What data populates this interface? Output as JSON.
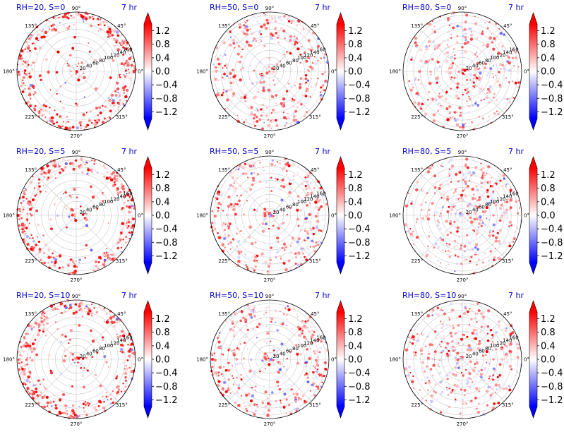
{
  "chart_data": {
    "type": "polar-scatter",
    "title": "",
    "colormap": "bwr",
    "color_range": [
      -1.4,
      1.4
    ],
    "colorbar_ticks": [
      "1.2",
      "0.8",
      "0.4",
      "0.0",
      "−0.4",
      "−0.8",
      "−1.2"
    ],
    "angular_ticks": [
      "0°",
      "45°",
      "90°",
      "135°",
      "180°",
      "225°",
      "270°",
      "315°"
    ],
    "radial_ticks": [
      "20",
      "40",
      "60",
      "80",
      "100",
      "120",
      "140",
      "160"
    ],
    "radial_range": [
      0,
      170
    ],
    "grid": true,
    "panels": [
      {
        "title": "RH=20, S=0",
        "time": "7 hr",
        "ring_min": 120,
        "bias": 0.65
      },
      {
        "title": "RH=50, S=0",
        "time": "7 hr",
        "ring_min": 80,
        "bias": 0.45
      },
      {
        "title": "RH=80, S=0",
        "time": "7 hr",
        "ring_min": 25,
        "bias": 0.35
      },
      {
        "title": "RH=20, S=5",
        "time": "7 hr",
        "ring_min": 120,
        "bias": 0.65
      },
      {
        "title": "RH=50, S=5",
        "time": "7 hr",
        "ring_min": 80,
        "bias": 0.45
      },
      {
        "title": "RH=80, S=5",
        "time": "7 hr",
        "ring_min": 25,
        "bias": 0.35
      },
      {
        "title": "RH=20, S=10",
        "time": "7 hr",
        "ring_min": 120,
        "bias": 0.65
      },
      {
        "title": "RH=50, S=10",
        "time": "7 hr",
        "ring_min": 80,
        "bias": 0.45
      },
      {
        "title": "RH=80, S=10",
        "time": "7 hr",
        "ring_min": 25,
        "bias": 0.35
      }
    ]
  }
}
